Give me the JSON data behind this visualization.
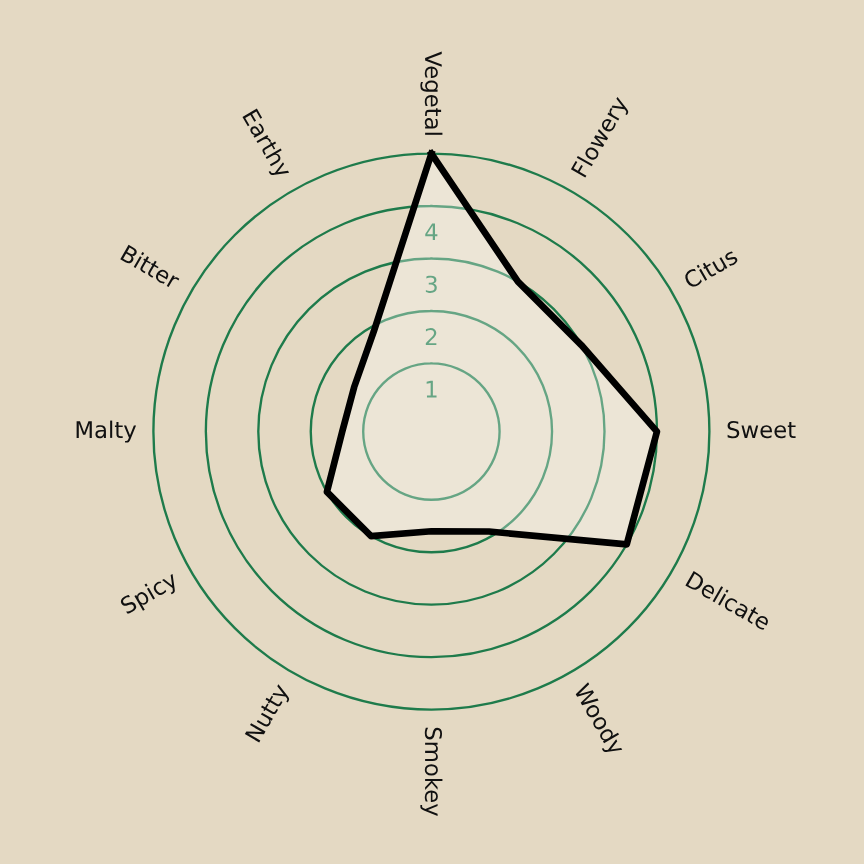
{
  "chart_data": {
    "type": "radar",
    "categories": [
      "Vegetal",
      "Flowery",
      "Citus",
      "Sweet",
      "Delicate",
      "Woody",
      "Smokey",
      "Nutty",
      "Spicy",
      "Malty",
      "Bitter",
      "Earthy"
    ],
    "series": [
      {
        "color": "#000000",
        "values": [
          5,
          3,
          3,
          4,
          4,
          1.9,
          1.6,
          2,
          2,
          1.4,
          1.4,
          1.9
        ]
      }
    ],
    "ylim": [
      -0.3,
      5
    ],
    "yticks": [
      1,
      2,
      3,
      4
    ],
    "grid": "y"
  }
}
